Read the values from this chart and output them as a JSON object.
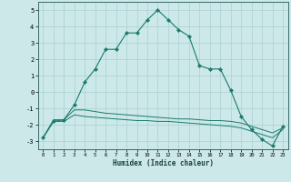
{
  "title": "",
  "xlabel": "Humidex (Indice chaleur)",
  "ylabel": "",
  "background_color": "#cce8e8",
  "line_color": "#1a7a6e",
  "x": [
    0,
    1,
    2,
    3,
    4,
    5,
    6,
    7,
    8,
    9,
    10,
    11,
    12,
    13,
    14,
    15,
    16,
    17,
    18,
    19,
    20,
    21,
    22,
    23
  ],
  "y_main": [
    -2.8,
    -1.8,
    -1.7,
    -0.8,
    0.6,
    1.4,
    2.6,
    2.6,
    3.6,
    3.6,
    4.4,
    5.0,
    4.4,
    3.8,
    3.4,
    1.6,
    1.4,
    1.4,
    0.1,
    -1.5,
    -2.3,
    -2.9,
    -3.3,
    -2.1
  ],
  "y_flat1": [
    -2.8,
    -1.7,
    -1.7,
    -1.1,
    -1.1,
    -1.2,
    -1.3,
    -1.35,
    -1.4,
    -1.45,
    -1.5,
    -1.55,
    -1.6,
    -1.65,
    -1.65,
    -1.7,
    -1.75,
    -1.75,
    -1.8,
    -1.9,
    -2.1,
    -2.3,
    -2.5,
    -2.2
  ],
  "y_flat2": [
    -2.8,
    -1.8,
    -1.8,
    -1.4,
    -1.5,
    -1.55,
    -1.6,
    -1.65,
    -1.7,
    -1.75,
    -1.75,
    -1.8,
    -1.8,
    -1.85,
    -1.9,
    -1.95,
    -2.0,
    -2.05,
    -2.1,
    -2.2,
    -2.4,
    -2.6,
    -2.8,
    -2.3
  ],
  "ylim": [
    -3.5,
    5.5
  ],
  "xlim": [
    -0.5,
    23.5
  ],
  "grid_color": "#aad0d0",
  "marker": "D",
  "markersize": 2.2,
  "xtick_fontsize": 4.0,
  "ytick_fontsize": 5.0,
  "xlabel_fontsize": 5.5,
  "yticks": [
    -3,
    -2,
    -1,
    0,
    1,
    2,
    3,
    4,
    5
  ]
}
